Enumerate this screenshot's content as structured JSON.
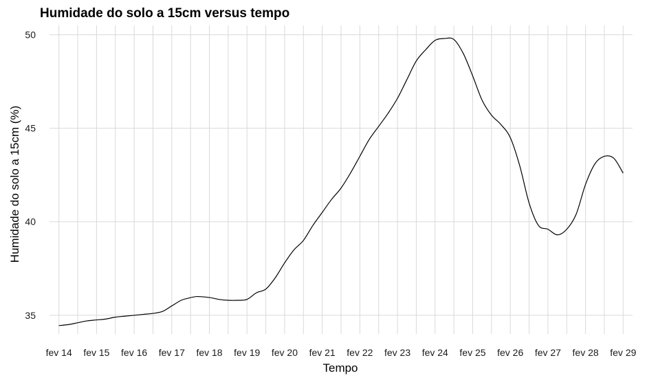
{
  "chart_data": {
    "type": "line",
    "title": "Humidade do solo a 15cm  versus tempo",
    "xlabel": "Tempo",
    "ylabel": "Humidade do solo a 15cm (%)",
    "x_ticks": [
      "fev 14",
      "fev 15",
      "fev 16",
      "fev 17",
      "fev 18",
      "fev 19",
      "fev 20",
      "fev 21",
      "fev 22",
      "fev 23",
      "fev 24",
      "fev 25",
      "fev 26",
      "fev 27",
      "fev 28",
      "fev 29"
    ],
    "y_ticks": [
      35,
      40,
      45,
      50
    ],
    "xlim": [
      "fev 13 18:00",
      "fev 29 06:00"
    ],
    "ylim": [
      34,
      50.5
    ],
    "grid": true,
    "legend": "none",
    "line_color": "#000000",
    "series": [
      {
        "x": [
          "fev 14 00:00",
          "fev 14 06:00",
          "fev 14 12:00",
          "fev 14 18:00",
          "fev 15 00:00",
          "fev 15 06:00",
          "fev 15 12:00",
          "fev 15 18:00",
          "fev 16 00:00",
          "fev 16 06:00",
          "fev 16 12:00",
          "fev 16 18:00",
          "fev 17 00:00",
          "fev 17 06:00",
          "fev 17 10:00",
          "fev 17 16:00",
          "fev 18 00:00",
          "fev 18 06:00",
          "fev 18 12:00",
          "fev 18 18:00",
          "fev 19 00:00",
          "fev 19 06:00",
          "fev 19 12:00",
          "fev 19 18:00",
          "fev 20 00:00",
          "fev 20 06:00",
          "fev 20 12:00",
          "fev 20 18:00",
          "fev 21 00:00",
          "fev 21 06:00",
          "fev 21 12:00",
          "fev 21 18:00",
          "fev 22 00:00",
          "fev 22 06:00",
          "fev 22 12:00",
          "fev 22 18:00",
          "fev 23 00:00",
          "fev 23 06:00",
          "fev 23 12:00",
          "fev 23 18:00",
          "fev 24 00:00",
          "fev 24 06:00",
          "fev 24 12:00",
          "fev 24 18:00",
          "fev 25 00:00",
          "fev 25 06:00",
          "fev 25 12:00",
          "fev 25 18:00",
          "fev 26 00:00",
          "fev 26 06:00",
          "fev 26 12:00",
          "fev 26 18:00",
          "fev 27 00:00",
          "fev 27 06:00",
          "fev 27 12:00",
          "fev 27 18:00",
          "fev 28 00:00",
          "fev 28 06:00",
          "fev 28 12:00",
          "fev 28 18:00",
          "fev 29 00:00"
        ],
        "values": [
          34.45,
          34.5,
          34.6,
          34.7,
          34.75,
          34.8,
          34.9,
          34.95,
          35.0,
          35.05,
          35.1,
          35.2,
          35.5,
          35.8,
          35.9,
          36.0,
          35.95,
          35.85,
          35.8,
          35.8,
          35.85,
          36.2,
          36.4,
          37.0,
          37.8,
          38.5,
          39.0,
          39.8,
          40.5,
          41.2,
          41.8,
          42.6,
          43.5,
          44.4,
          45.1,
          45.8,
          46.6,
          47.6,
          48.6,
          49.2,
          49.7,
          49.8,
          49.75,
          49.0,
          47.8,
          46.5,
          45.7,
          45.2,
          44.5,
          43.0,
          41.0,
          39.8,
          39.6,
          39.3,
          39.6,
          40.4,
          42.0,
          43.1,
          43.5,
          43.4,
          42.6
        ]
      }
    ]
  }
}
